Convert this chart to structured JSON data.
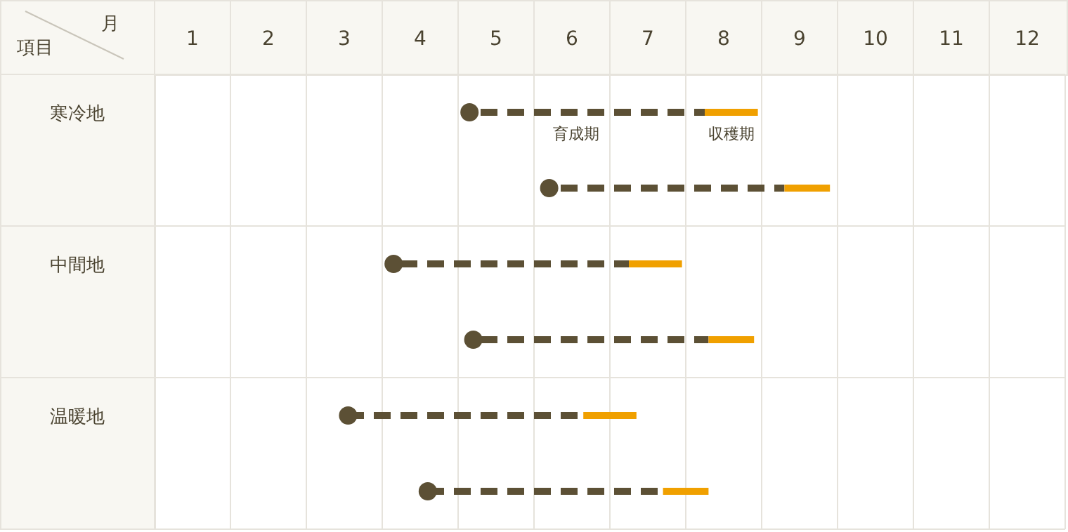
{
  "chart_data": {
    "type": "bar",
    "orientation": "horizontal",
    "xlabel": "月",
    "ylabel": "項目",
    "categories": [
      "寒冷地",
      null,
      "中間地",
      null,
      "温暖地",
      null
    ],
    "xlim": [
      1,
      13
    ],
    "xticks": [
      {
        "value": 1.5,
        "label": "1"
      },
      {
        "value": 2.5,
        "label": "2"
      },
      {
        "value": 3.5,
        "label": "3"
      },
      {
        "value": 4.5,
        "label": "4"
      },
      {
        "value": 5.5,
        "label": "5"
      },
      {
        "value": 6.5,
        "label": "6"
      },
      {
        "value": 7.5,
        "label": "7"
      },
      {
        "value": 8.5,
        "label": "8"
      },
      {
        "value": 9.5,
        "label": "9"
      },
      {
        "value": 10.5,
        "label": "10"
      },
      {
        "value": 11.5,
        "label": "11"
      },
      {
        "value": 12.5,
        "label": "12"
      }
    ],
    "grid": true,
    "series": [
      {
        "name": "育成期",
        "color": "#5c5035",
        "line_style": "dashed",
        "marker": "circle",
        "base": [
          5.15,
          6.2,
          4.15,
          5.2,
          3.55,
          4.6
        ],
        "values": [
          3.1,
          3.1,
          3.1,
          3.1,
          3.1,
          3.1
        ]
      },
      {
        "name": "収穫期",
        "color": "#f0a000",
        "base": [
          8.25,
          9.3,
          7.25,
          8.3,
          6.65,
          7.7
        ],
        "values": [
          0.7,
          0.6,
          0.7,
          0.6,
          0.7,
          0.6
        ]
      }
    ]
  }
}
